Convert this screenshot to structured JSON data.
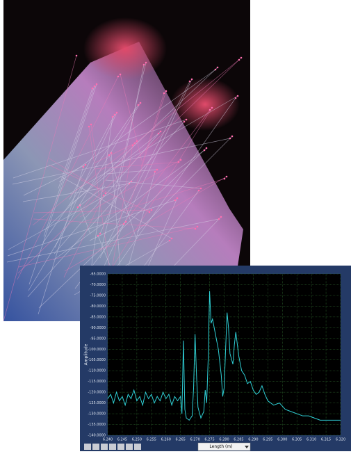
{
  "chart_data": {
    "type": "line",
    "y_label": "Amplitude",
    "x_label": "Length (m)",
    "x": [
      6.24,
      6.241,
      6.242,
      6.243,
      6.244,
      6.245,
      6.246,
      6.247,
      6.248,
      6.249,
      6.25,
      6.251,
      6.252,
      6.253,
      6.254,
      6.255,
      6.256,
      6.257,
      6.258,
      6.259,
      6.26,
      6.261,
      6.262,
      6.263,
      6.264,
      6.265,
      6.2655,
      6.266,
      6.2665,
      6.267,
      6.268,
      6.269,
      6.2695,
      6.27,
      6.2705,
      6.271,
      6.272,
      6.273,
      6.2735,
      6.274,
      6.2745,
      6.275,
      6.2755,
      6.276,
      6.277,
      6.278,
      6.279,
      6.2795,
      6.28,
      6.2805,
      6.281,
      6.2815,
      6.282,
      6.283,
      6.2835,
      6.284,
      6.285,
      6.286,
      6.287,
      6.288,
      6.289,
      6.29,
      6.291,
      6.292,
      6.293,
      6.294,
      6.295,
      6.297,
      6.299,
      6.301,
      6.303,
      6.305,
      6.307,
      6.309,
      6.311,
      6.313,
      6.315,
      6.317,
      6.319,
      6.32
    ],
    "series": [
      {
        "color": "#2fd0d6",
        "values": [
          -123,
          -121,
          -125,
          -120,
          -124,
          -122,
          -126,
          -121,
          -123,
          -119,
          -124,
          -122,
          -126,
          -120,
          -123,
          -121,
          -125,
          -122,
          -124,
          -120,
          -123,
          -121,
          -126,
          -122,
          -124,
          -122,
          -130,
          -96,
          -128,
          -132,
          -133,
          -131,
          -118,
          -93,
          -112,
          -127,
          -132,
          -129,
          -119,
          -125,
          -105,
          -73,
          -88,
          -86,
          -93,
          -100,
          -112,
          -122,
          -118,
          -100,
          -83,
          -90,
          -102,
          -107,
          -98,
          -92,
          -103,
          -110,
          -112,
          -116,
          -115,
          -119,
          -121,
          -120,
          -117,
          -121,
          -124,
          -126,
          -125,
          -128,
          -129,
          -130,
          -131,
          -131,
          -132,
          -133,
          -133,
          -133,
          -133,
          -133
        ]
      }
    ],
    "xlim": [
      6.24,
      6.32
    ],
    "ylim": [
      -140,
      -65
    ],
    "grid": true,
    "xticks": [
      {
        "value": 6.24,
        "label": "6.240"
      },
      {
        "value": 6.245,
        "label": "6.245"
      },
      {
        "value": 6.25,
        "label": "6.250"
      },
      {
        "value": 6.255,
        "label": "6.255"
      },
      {
        "value": 6.26,
        "label": "6.260"
      },
      {
        "value": 6.265,
        "label": "6.265"
      },
      {
        "value": 6.27,
        "label": "6.270"
      },
      {
        "value": 6.275,
        "label": "6.275"
      },
      {
        "value": 6.28,
        "label": "6.280"
      },
      {
        "value": 6.285,
        "label": "6.285"
      },
      {
        "value": 6.29,
        "label": "6.290"
      },
      {
        "value": 6.295,
        "label": "6.295"
      },
      {
        "value": 6.3,
        "label": "6.300"
      },
      {
        "value": 6.305,
        "label": "6.305"
      },
      {
        "value": 6.31,
        "label": "6.310"
      },
      {
        "value": 6.315,
        "label": "6.315"
      },
      {
        "value": 6.32,
        "label": "6.320"
      }
    ],
    "yticks": [
      {
        "value": -65,
        "label": "-65.0000"
      },
      {
        "value": -70,
        "label": "-70.0000"
      },
      {
        "value": -75,
        "label": "-75.0000"
      },
      {
        "value": -80,
        "label": "-80.0000"
      },
      {
        "value": -85,
        "label": "-85.0000"
      },
      {
        "value": -90,
        "label": "-90.0000"
      },
      {
        "value": -95,
        "label": "-95.0000"
      },
      {
        "value": -100,
        "label": "-100.0000"
      },
      {
        "value": -105,
        "label": "-105.0000"
      },
      {
        "value": -110,
        "label": "-110.0000"
      },
      {
        "value": -115,
        "label": "-115.0000"
      },
      {
        "value": -120,
        "label": "-120.0000"
      },
      {
        "value": -125,
        "label": "-125.0000"
      },
      {
        "value": -130,
        "label": "-130.0000"
      },
      {
        "value": -135,
        "label": "-135.0000"
      },
      {
        "value": -140,
        "label": "-140.0000"
      }
    ]
  }
}
